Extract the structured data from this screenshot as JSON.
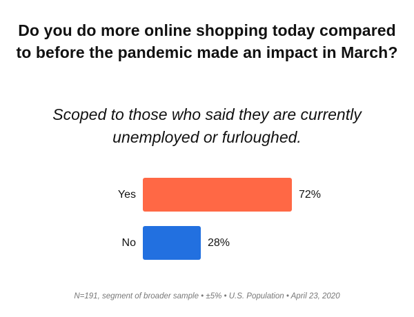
{
  "chart_data": {
    "type": "bar",
    "orientation": "horizontal",
    "title": "Do you do more online shopping today compared to before the pandemic made an impact in March?",
    "subtitle": "Scoped to those who said they are currently unemployed or furloughed.",
    "categories": [
      "Yes",
      "No"
    ],
    "values": [
      72,
      28
    ],
    "value_labels": [
      "72%",
      "28%"
    ],
    "colors": [
      "#FF6845",
      "#2270E0"
    ],
    "xlim": [
      0,
      100
    ],
    "grid": false,
    "legend": "none",
    "footnote": "N=191, segment of broader sample  •  ±5%  •  U.S. Population  •  April 23, 2020"
  }
}
